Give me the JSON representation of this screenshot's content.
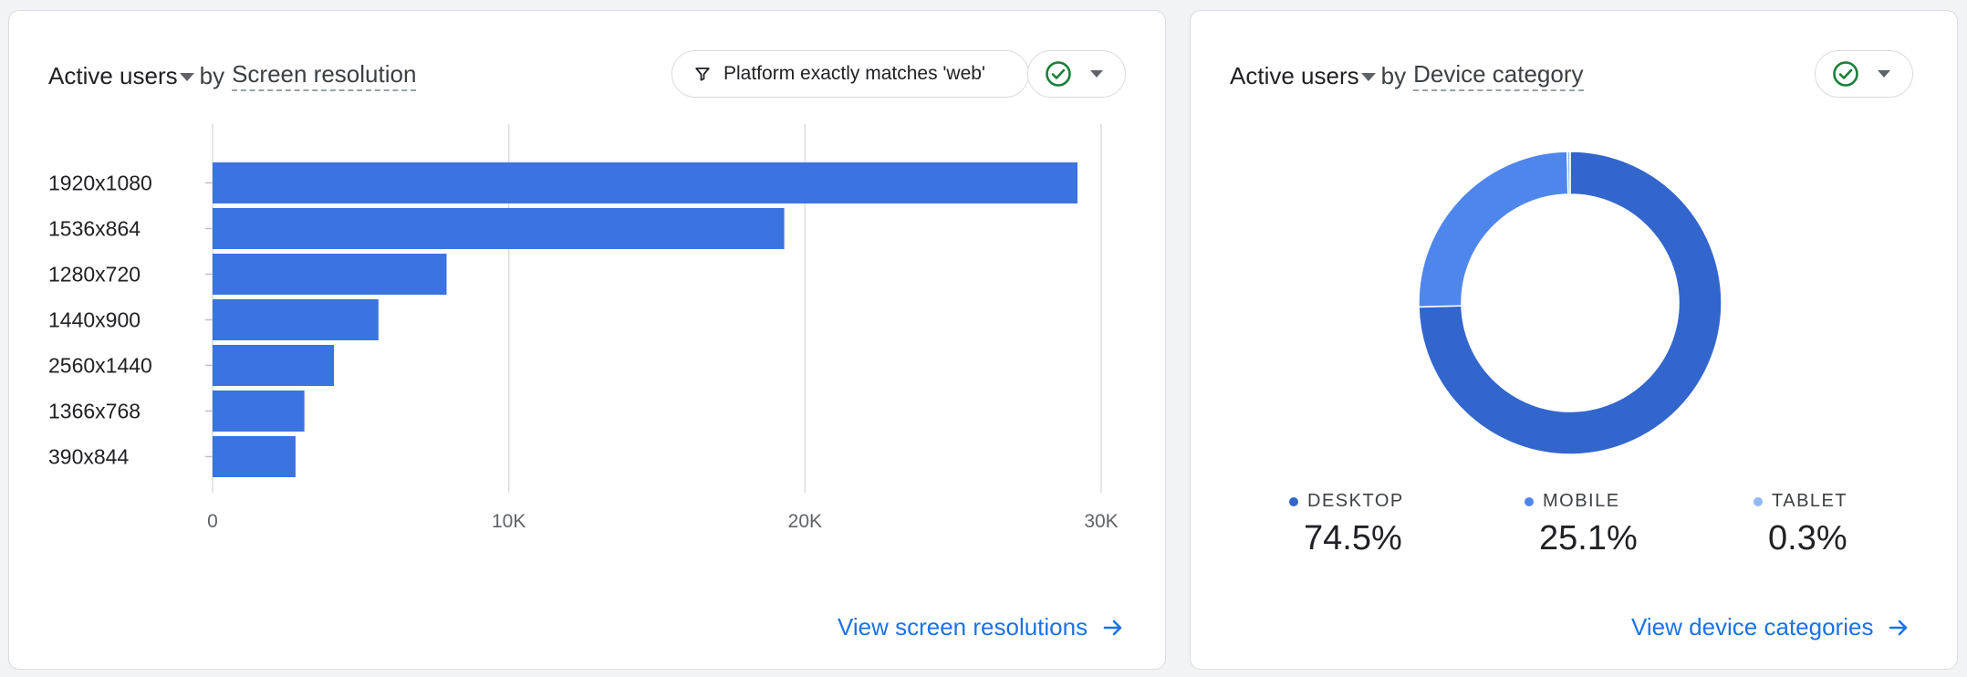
{
  "left_card": {
    "metric": "Active users",
    "by": "by",
    "dimension": "Screen resolution",
    "filter_label": "Platform exactly matches 'web'",
    "view_link": "View screen resolutions",
    "chart_data": {
      "type": "bar",
      "orientation": "horizontal",
      "categories": [
        "1920x1080",
        "1536x864",
        "1280x720",
        "1440x900",
        "2560x1440",
        "1366x768",
        "390x844"
      ],
      "values": [
        29200,
        19300,
        7900,
        5600,
        4100,
        3100,
        2800
      ],
      "xticks": [
        "0",
        "10K",
        "20K",
        "30K"
      ],
      "xtick_values": [
        0,
        10000,
        20000,
        30000
      ],
      "xlim": [
        0,
        30000
      ],
      "color": "#3b73e0",
      "grid": true
    }
  },
  "right_card": {
    "metric": "Active users",
    "by": "by",
    "dimension": "Device category",
    "view_link": "View device categories",
    "chart_data": {
      "type": "pie",
      "style": "donut",
      "labels": [
        "DESKTOP",
        "MOBILE",
        "TABLET"
      ],
      "values": [
        74.5,
        25.1,
        0.3
      ],
      "display_values": [
        "74.5%",
        "25.1%",
        "0.3%"
      ],
      "colors": [
        "#3366cc",
        "#4f86ec",
        "#94b8f2"
      ]
    }
  },
  "colors": {
    "accent": "#1a73e8",
    "check_green": "#188038"
  },
  "icons": [
    "filter-icon",
    "check-circle-icon",
    "chevron-down-icon",
    "arrow-right-icon"
  ]
}
